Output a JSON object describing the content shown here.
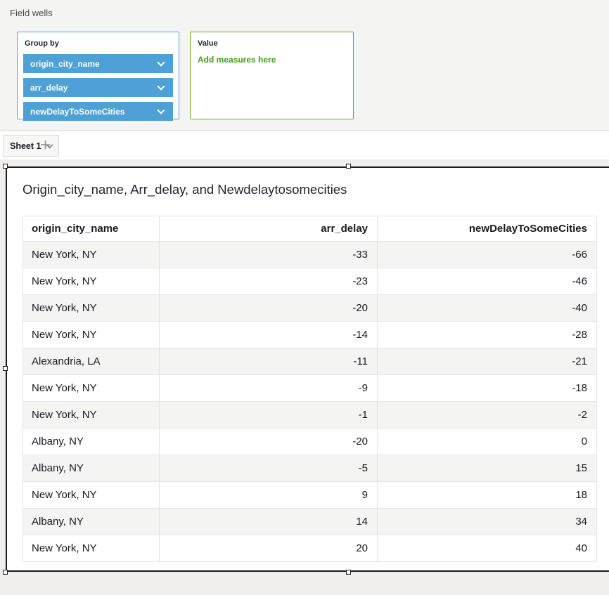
{
  "field_wells": {
    "title": "Field wells",
    "group_by": {
      "label": "Group by",
      "pills": [
        "origin_city_name",
        "arr_delay",
        "newDelayToSomeCities"
      ]
    },
    "value": {
      "label": "Value",
      "placeholder": "Add measures here"
    }
  },
  "sheet_bar": {
    "tab_label": "Sheet 1",
    "add_sheet_label": "+"
  },
  "visual": {
    "title": "Origin_city_name, Arr_delay, and Newdelaytosomecities",
    "table": {
      "columns": [
        "origin_city_name",
        "arr_delay",
        "newDelayToSomeCities"
      ],
      "rows": [
        [
          "New York, NY",
          "-33",
          "-66"
        ],
        [
          "New York, NY",
          "-23",
          "-46"
        ],
        [
          "New York, NY",
          "-20",
          "-40"
        ],
        [
          "New York, NY",
          "-14",
          "-28"
        ],
        [
          "Alexandria, LA",
          "-11",
          "-21"
        ],
        [
          "New York, NY",
          "-9",
          "-18"
        ],
        [
          "New York, NY",
          "-1",
          "-2"
        ],
        [
          "Albany, NY",
          "-20",
          "0"
        ],
        [
          "Albany, NY",
          "-5",
          "15"
        ],
        [
          "New York, NY",
          "9",
          "18"
        ],
        [
          "Albany, NY",
          "14",
          "34"
        ],
        [
          "New York, NY",
          "20",
          "40"
        ]
      ]
    }
  },
  "icons": {
    "pill_chevron": "chevron-down",
    "tab_chevron": "chevron-down",
    "add_sheet": "plus"
  },
  "colors": {
    "pill_blue": "#4FA0D5",
    "group_by_border": "#4FA0D5",
    "value_border_green": "#6AA825",
    "add_measures_green": "#3EA214",
    "selection_border": "#1c1c1c",
    "row_alt_gray": "#f4f4f3"
  }
}
